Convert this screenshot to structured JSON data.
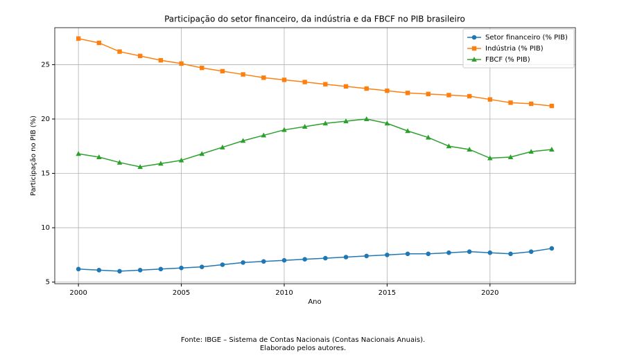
{
  "chart_data": {
    "type": "line",
    "title": "Participação do setor financeiro, da indústria e da FBCF no PIB brasileiro",
    "xlabel": "Ano",
    "ylabel": "Participação no PIB (%)",
    "x": [
      2000,
      2001,
      2002,
      2003,
      2004,
      2005,
      2006,
      2007,
      2008,
      2009,
      2010,
      2011,
      2012,
      2013,
      2014,
      2015,
      2016,
      2017,
      2018,
      2019,
      2020,
      2021,
      2022,
      2023
    ],
    "series": [
      {
        "name": "Setor financeiro (% PIB)",
        "color": "#1f77b4",
        "marker": "circle",
        "values": [
          6.2,
          6.1,
          6.0,
          6.1,
          6.2,
          6.3,
          6.4,
          6.6,
          6.8,
          6.9,
          7.0,
          7.1,
          7.2,
          7.3,
          7.4,
          7.5,
          7.6,
          7.6,
          7.7,
          7.8,
          7.7,
          7.6,
          7.8,
          8.1
        ]
      },
      {
        "name": "Indústria (% PIB)",
        "color": "#ff7f0e",
        "marker": "square",
        "values": [
          27.4,
          27.0,
          26.2,
          25.8,
          25.4,
          25.1,
          24.7,
          24.4,
          24.1,
          23.8,
          23.6,
          23.4,
          23.2,
          23.0,
          22.8,
          22.6,
          22.4,
          22.3,
          22.2,
          22.1,
          21.8,
          21.5,
          21.4,
          21.2
        ]
      },
      {
        "name": "FBCF (% PIB)",
        "color": "#2ca02c",
        "marker": "triangle",
        "values": [
          16.8,
          16.5,
          16.0,
          15.6,
          15.9,
          16.2,
          16.8,
          17.4,
          18.0,
          18.5,
          19.0,
          19.3,
          19.6,
          19.8,
          20.0,
          19.6,
          18.9,
          18.3,
          17.5,
          17.2,
          16.4,
          16.5,
          17.0,
          17.2
        ]
      }
    ],
    "xlim": [
      1998.85,
      2024.15
    ],
    "xticks": [
      2000,
      2005,
      2010,
      2015,
      2020
    ],
    "ylim": [
      4.85,
      28.4
    ],
    "yticks": [
      5,
      10,
      15,
      20,
      25
    ],
    "grid": true,
    "legend": "upper right"
  },
  "footnote": [
    "Fonte: IBGE – Sistema de Contas Nacionais (Contas Nacionais Anuais).",
    "Elaborado pelos autores."
  ]
}
